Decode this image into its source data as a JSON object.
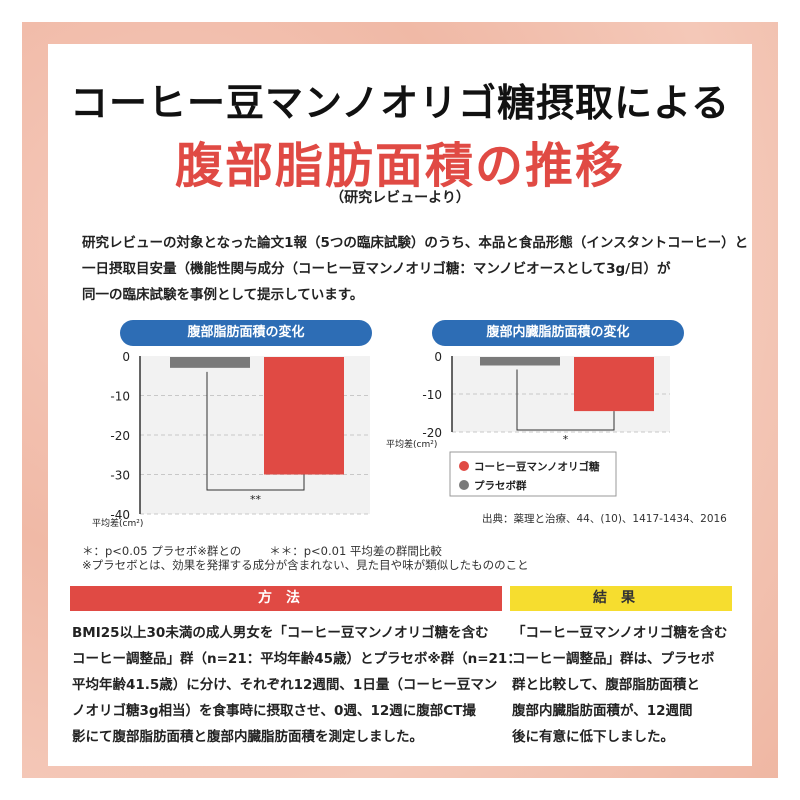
{
  "title_line1": "コーヒー豆マンノオリゴ糖摂取による",
  "title_line2": "腹部脂肪面積の推移",
  "title_note": "（研究レビューより）",
  "intro_lines": [
    "研究レビューの対象となった論文1報（5つの臨床試験）のうち、本品と食品形態（インスタントコーヒー）と",
    "一日摂取目安量（機能性関与成分（コーヒー豆マンノオリゴ糖：マンノビオースとして3g/日）が",
    "同一の臨床試験を事例として提示しています。"
  ],
  "colors": {
    "accent_red": "#e04a44",
    "placebo_gray": "#7a7a7a",
    "chip_blue": "#2d6db5",
    "result_yellow": "#f6dd2f"
  },
  "chart_data": [
    {
      "type": "bar",
      "title": "腹部脂肪面積の変化",
      "categories": [
        "プラセボ群",
        "コーヒー豆マンノオリゴ糖"
      ],
      "values": [
        -3,
        -30
      ],
      "ylim": [
        -40,
        0
      ],
      "yticks": [
        "0",
        "-10",
        "-20",
        "-30",
        "-40"
      ],
      "ylabel": "平均差(cm²)",
      "significance": "**",
      "grid": true
    },
    {
      "type": "bar",
      "title": "腹部内臓脂肪面積の変化",
      "categories": [
        "プラセボ群",
        "コーヒー豆マンノオリゴ糖"
      ],
      "values": [
        -2.5,
        -14.5
      ],
      "ylim": [
        -20,
        0
      ],
      "yticks": [
        "0",
        "-10",
        "-20"
      ],
      "ylabel": "平均差(cm²)",
      "significance": "*",
      "grid": true,
      "legend": [
        {
          "label": "コーヒー豆マンノオリゴ糖",
          "color": "#e04a44"
        },
        {
          "label": "プラセボ群",
          "color": "#7a7a7a"
        }
      ],
      "source": "出典：薬理と治療、44、(10)、1417-1434、2016"
    }
  ],
  "notes": {
    "line1a": "＊：p<0.05 プラセボ※群との",
    "line1b": "＊＊：p<0.01 平均差の群間比較",
    "line2": "※プラセボとは、効果を発揮する成分が含まれない、見た目や味が類似したもののこと"
  },
  "method": {
    "header": "方法",
    "lines": [
      "BMI25以上30未満の成人男女を「コーヒー豆マンノオリゴ糖を含む",
      "コーヒー調整品」群（n=21：平均年齢45歳）とプラセボ※群（n=21：",
      "平均年齢41.5歳）に分け、それぞれ12週間、1日量（コーヒー豆マン",
      "ノオリゴ糖3g相当）を食事時に摂取させ、0週、12週に腹部CT撮",
      "影にて腹部脂肪面積と腹部内臓脂肪面積を測定しました。"
    ]
  },
  "result": {
    "header": "結果",
    "lines": [
      "「コーヒー豆マンノオリゴ糖を含む",
      "コーヒー調整品」群は、プラセボ",
      "群と比較して、腹部脂肪面積と",
      "腹部内臓脂肪面積が、12週間",
      "後に有意に低下しました。"
    ]
  }
}
